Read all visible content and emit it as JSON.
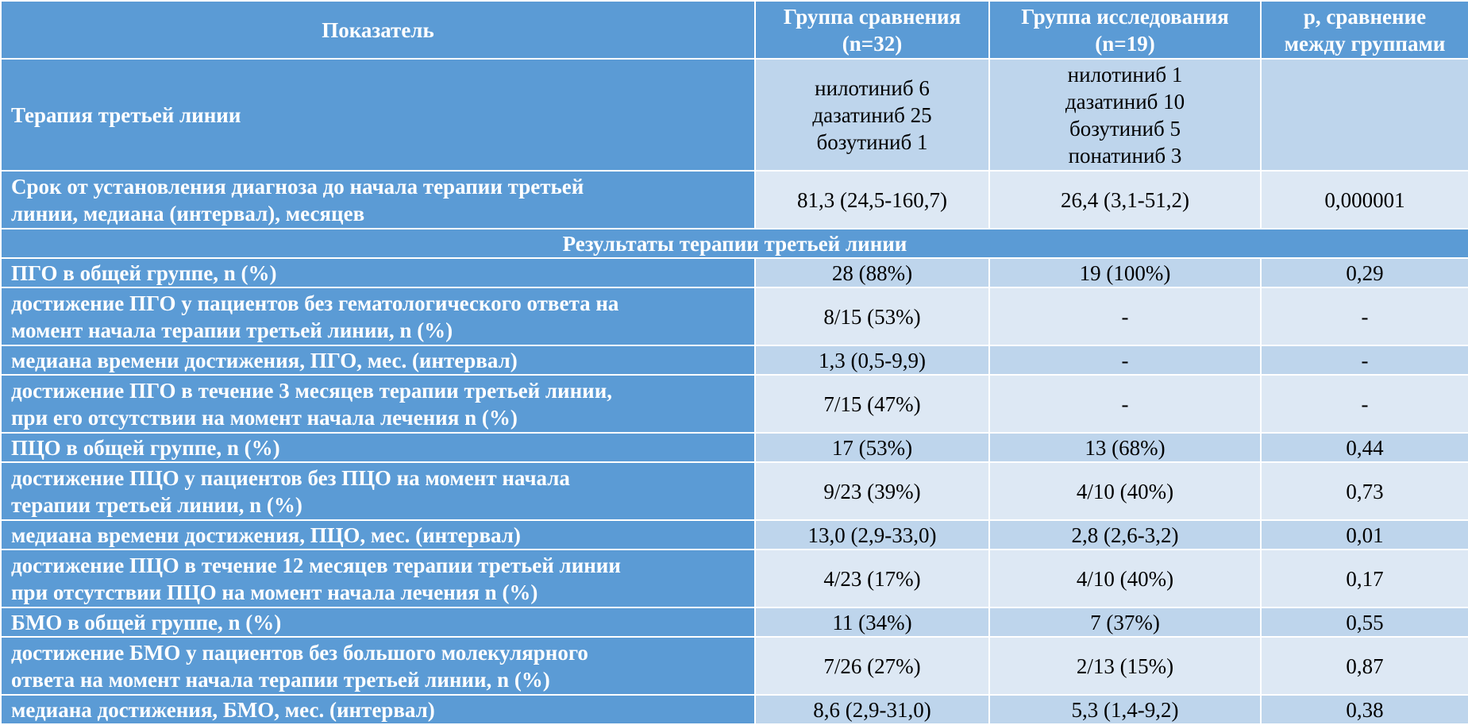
{
  "header": {
    "col1": "Показатель",
    "col2": [
      "Группа сравнения",
      "(n=32)"
    ],
    "col3": [
      "Группа исследования",
      "(n=19)"
    ],
    "col4": [
      "p, сравнение",
      "между группами"
    ]
  },
  "therapy_row": {
    "label": "Терапия третьей линии",
    "comparison": [
      "нилотиниб 6",
      "дазатиниб 25",
      "бозутиниб 1"
    ],
    "study": [
      "нилотиниб 1",
      "дазатиниб 10",
      "бозутиниб 5",
      "понатиниб 3"
    ],
    "p": ""
  },
  "rows_top": [
    {
      "label": [
        "Срок от установления диагноза до начала терапии третьей",
        "линии, медиана (интервал), месяцев"
      ],
      "comparison": "81,3 (24,5-160,7)",
      "study": "26,4 (3,1-51,2)",
      "p": "0,000001"
    }
  ],
  "section_title": "Результаты терапии третьей линии",
  "rows": [
    {
      "label": [
        "ПГО в общей группе, n (%)"
      ],
      "comparison": "28 (88%)",
      "study": "19 (100%)",
      "p": "0,29"
    },
    {
      "label": [
        "достижение ПГО у пациентов без гематологического ответа на",
        "момент начала терапии третьей линии, n (%)"
      ],
      "comparison": "8/15 (53%)",
      "study": "-",
      "p": "-"
    },
    {
      "label": [
        "медиана времени достижения, ПГО, мес. (интервал)"
      ],
      "comparison": "1,3 (0,5-9,9)",
      "study": "-",
      "p": "-"
    },
    {
      "label": [
        "достижение ПГО в течение 3 месяцев терапии третьей линии,",
        "при его отсутствии на момент начала лечения n (%)"
      ],
      "comparison": "7/15 (47%)",
      "study": "-",
      "p": "-"
    },
    {
      "label": [
        "ПЦО в общей группе, n (%)"
      ],
      "comparison": "17 (53%)",
      "study": "13 (68%)",
      "p": "0,44"
    },
    {
      "label": [
        "достижение ПЦО у пациентов без ПЦО на момент начала",
        "терапии третьей линии, n (%)"
      ],
      "comparison": "9/23 (39%)",
      "study": "4/10 (40%)",
      "p": "0,73"
    },
    {
      "label": [
        "медиана времени достижения, ПЦО, мес. (интервал)"
      ],
      "comparison": "13,0 (2,9-33,0)",
      "study": "2,8 (2,6-3,2)",
      "p": "0,01"
    },
    {
      "label": [
        "достижение ПЦО в течение 12 месяцев терапии третьей линии",
        "при отсутствии ПЦО на момент начала лечения n (%)"
      ],
      "comparison": "4/23 (17%)",
      "study": "4/10 (40%)",
      "p": "0,17"
    },
    {
      "label": [
        "БМО в общей группе, n (%)"
      ],
      "comparison": "11 (34%)",
      "study": "7 (37%)",
      "p": "0,55"
    },
    {
      "label": [
        "достижение БМО у пациентов без большого молекулярного",
        "ответа на момент начала терапии третьей линии, n (%)"
      ],
      "comparison": "7/26 (27%)",
      "study": "2/13 (15%)",
      "p": "0,87"
    },
    {
      "label": [
        "медиана достижения, БМО, мес. (интервал)"
      ],
      "comparison": "8,6 (2,9-31,0)",
      "study": "5,3 (1,4-9,2)",
      "p": "0,38"
    }
  ]
}
